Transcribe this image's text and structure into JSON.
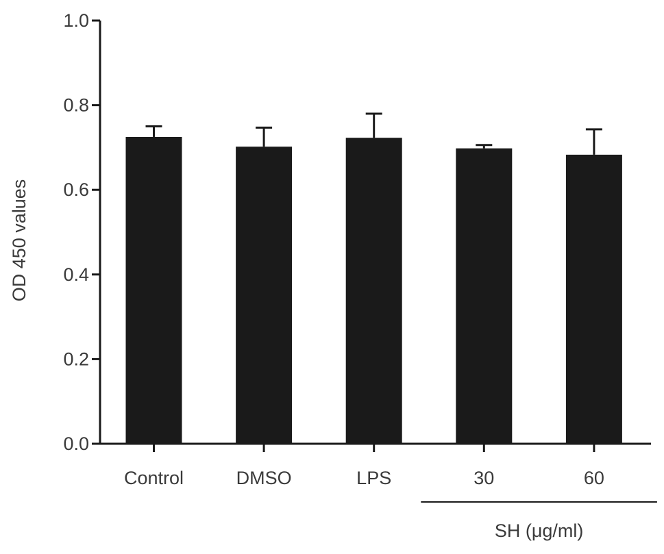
{
  "chart_data": {
    "type": "bar",
    "title": "",
    "xlabel": "",
    "ylabel": "OD 450 values",
    "ylim": [
      0,
      1.0
    ],
    "yticks": [
      0.0,
      0.2,
      0.4,
      0.6,
      0.8,
      1.0
    ],
    "ytick_labels": [
      "0.0",
      "0.2",
      "0.4",
      "0.6",
      "0.8",
      "1.0"
    ],
    "categories": [
      "Control",
      "DMSO",
      "LPS",
      "30",
      "60"
    ],
    "values": [
      0.725,
      0.702,
      0.723,
      0.698,
      0.683
    ],
    "errors": [
      0.025,
      0.045,
      0.057,
      0.008,
      0.06
    ],
    "group_label": {
      "text": "SH (μg/ml)",
      "covers": [
        "30",
        "60"
      ]
    },
    "grid": false,
    "bar_color": "#1a1a1a",
    "axis_color": "#1a1a1a",
    "text_color": "#3a3a3a"
  }
}
